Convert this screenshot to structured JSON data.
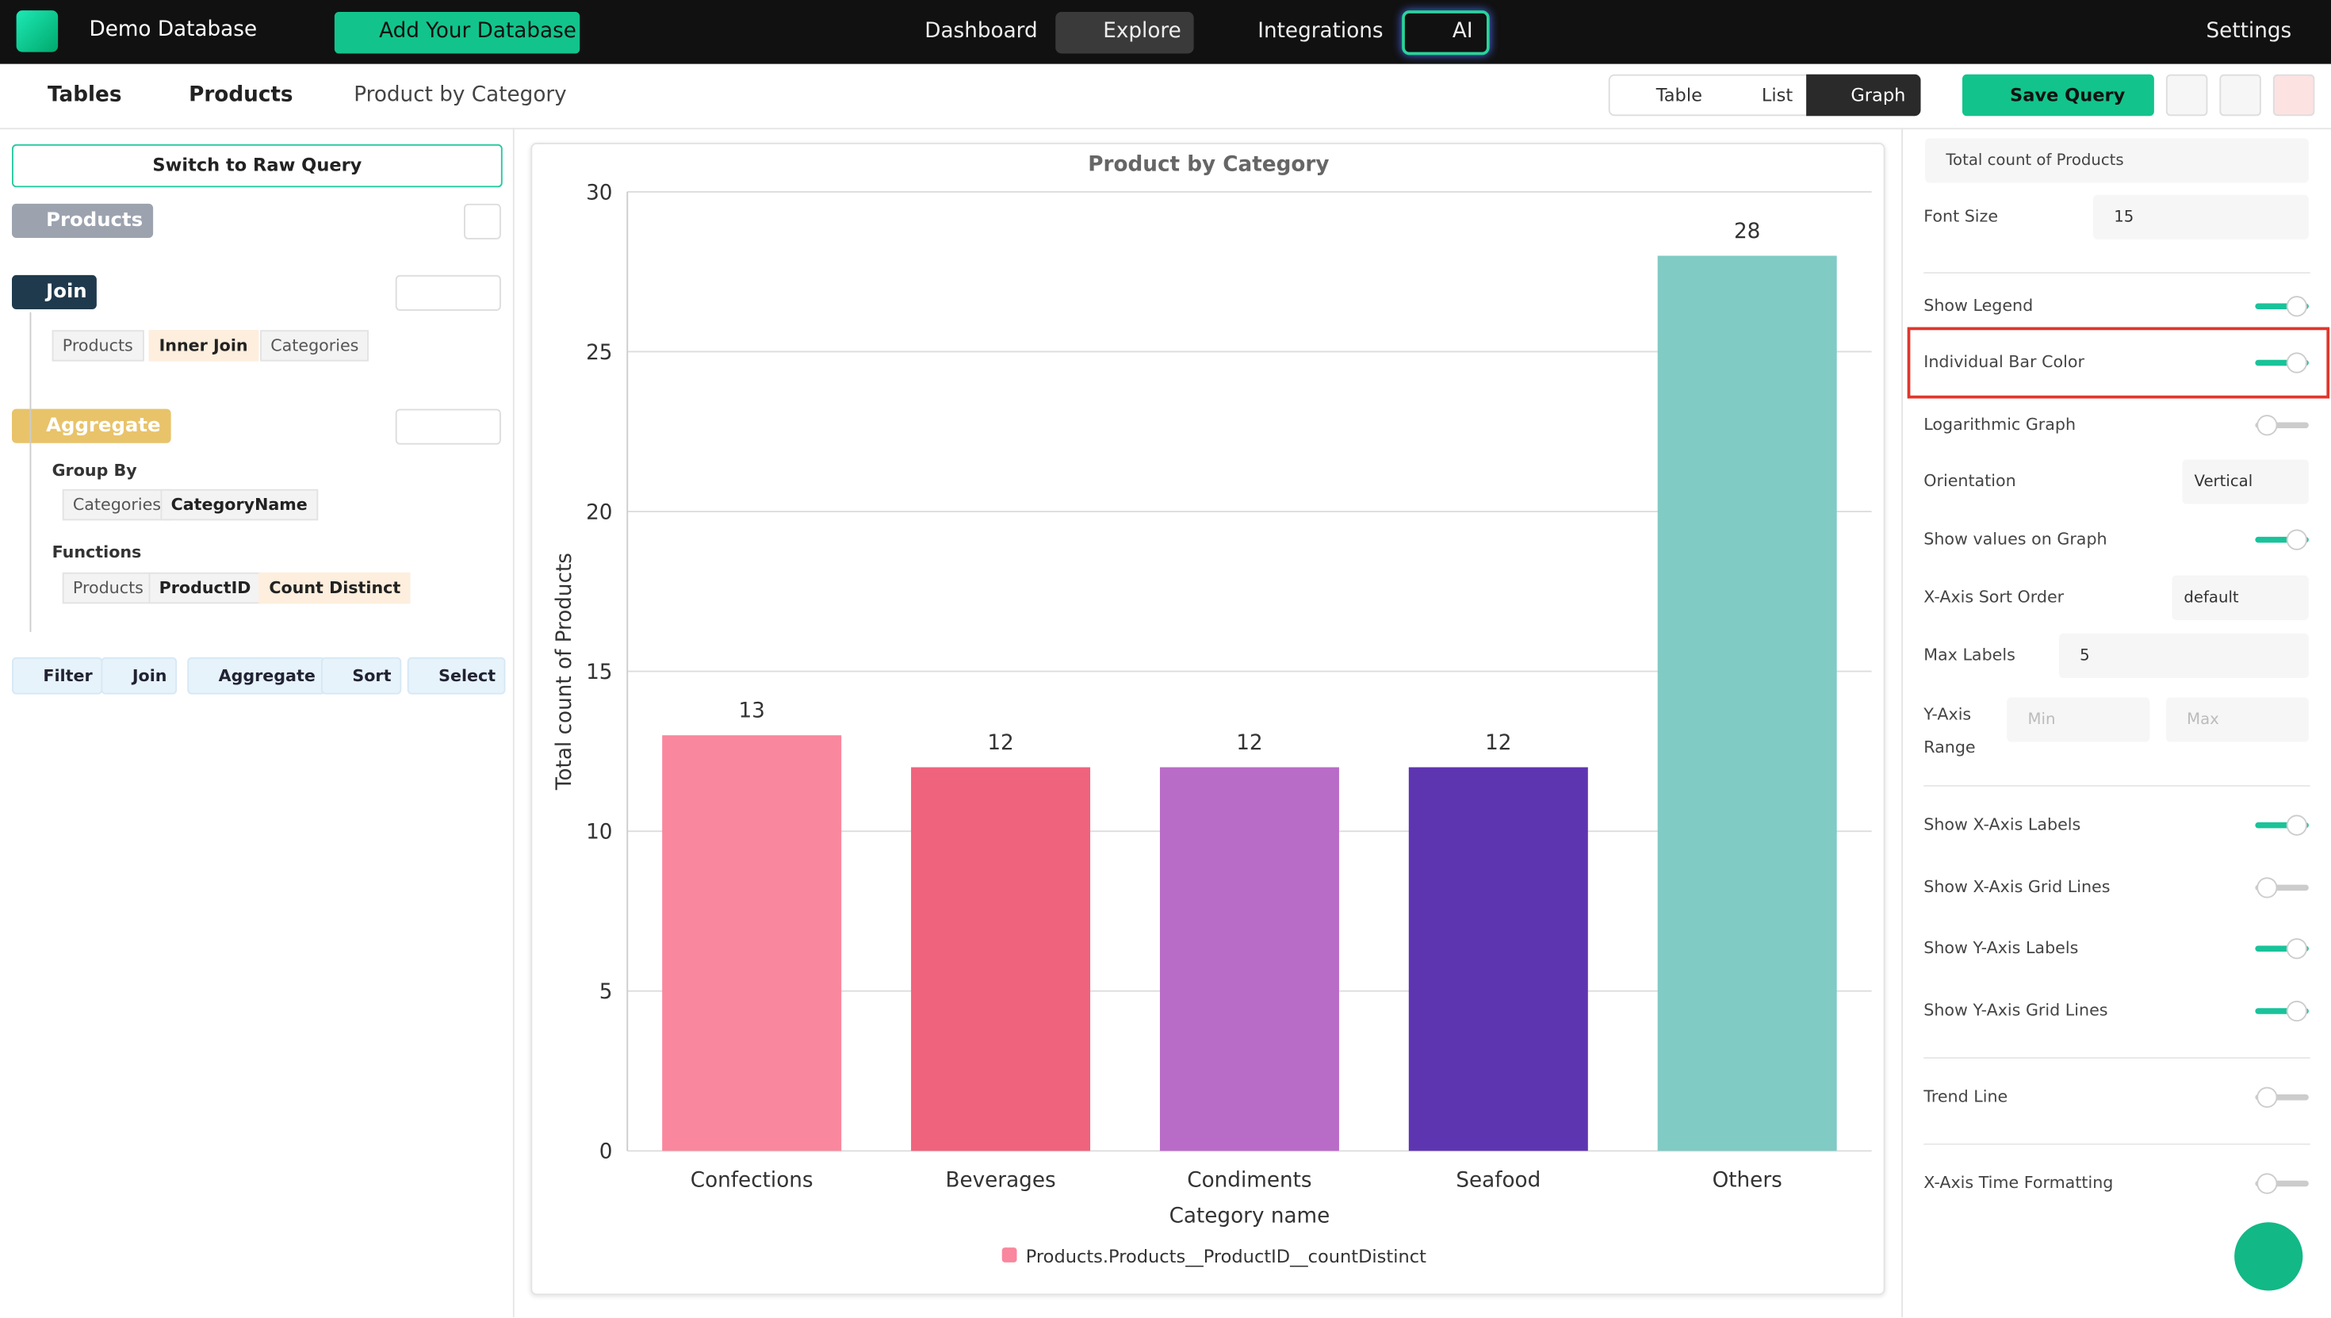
{
  "nav": {
    "database": "Demo Database",
    "add_database": "Add Your Database",
    "links": [
      "Dashboard",
      "Explore",
      "Integrations",
      "AI"
    ],
    "settings": "Settings"
  },
  "breadcrumb": [
    "Tables",
    "Products",
    "Product by Category"
  ],
  "views": [
    "Table",
    "List",
    "Graph"
  ],
  "save_query": "Save Query",
  "query": {
    "switch": "Switch to Raw Query",
    "source": "Products",
    "join": {
      "label": "Join",
      "chips": [
        "Products",
        "Inner Join",
        "Categories"
      ]
    },
    "aggregate": {
      "label": "Aggregate",
      "group_by": "Group By",
      "group_chips": [
        "Categories",
        "CategoryName"
      ],
      "functions": "Functions",
      "function_chips": [
        "Products",
        "ProductID",
        "Count Distinct"
      ]
    },
    "actions": [
      "Filter",
      "Join",
      "Aggregate",
      "Sort",
      "Select"
    ]
  },
  "chart_data": {
    "type": "bar",
    "title": "Product by Category",
    "categories": [
      "Confections",
      "Beverages",
      "Condiments",
      "Seafood",
      "Others"
    ],
    "series": [
      {
        "name": "Products.Products__ProductID__countDistinct",
        "color": "#f9879d",
        "colors": [
          "#f9879d",
          "#ef637d",
          "#b96bc8",
          "#5e35b1",
          "#80cbc4"
        ],
        "values": [
          13,
          12,
          12,
          12,
          28
        ]
      }
    ],
    "xlabel": "Category name",
    "ylabel": "Total count of Products",
    "ylim": [
      0,
      30
    ],
    "yticks": [
      0,
      5,
      10,
      15,
      20,
      25,
      30
    ],
    "grid": true,
    "show_values": true,
    "legend": "bottom"
  },
  "settings": [
    {
      "label": "Total count of Products",
      "kind": "input"
    },
    {
      "label": "Font Size",
      "kind": "input",
      "value": "15"
    },
    {
      "label": "Show Legend",
      "kind": "toggle",
      "on": true
    },
    {
      "label": "Individual Bar Color",
      "kind": "toggle",
      "on": true
    },
    {
      "label": "Logarithmic Graph",
      "kind": "toggle",
      "on": false
    },
    {
      "label": "Orientation",
      "kind": "select",
      "value": "Vertical"
    },
    {
      "label": "Show values on Graph",
      "kind": "toggle",
      "on": true
    },
    {
      "label": "X-Axis Sort Order",
      "kind": "select",
      "value": "default"
    },
    {
      "label": "Max Labels",
      "kind": "input",
      "value": "5"
    },
    {
      "label": "Y-Axis Range",
      "kind": "range",
      "min": "Min",
      "max": "Max"
    },
    {
      "label": "Show X-Axis Labels",
      "kind": "toggle",
      "on": true
    },
    {
      "label": "Show X-Axis Grid Lines",
      "kind": "toggle",
      "on": false
    },
    {
      "label": "Show Y-Axis Labels",
      "kind": "toggle",
      "on": true
    },
    {
      "label": "Show Y-Axis Grid Lines",
      "kind": "toggle",
      "on": true
    },
    {
      "label": "Trend Line",
      "kind": "toggle",
      "on": false
    },
    {
      "label": "X-Axis Time Formatting",
      "kind": "toggle",
      "on": false
    }
  ]
}
